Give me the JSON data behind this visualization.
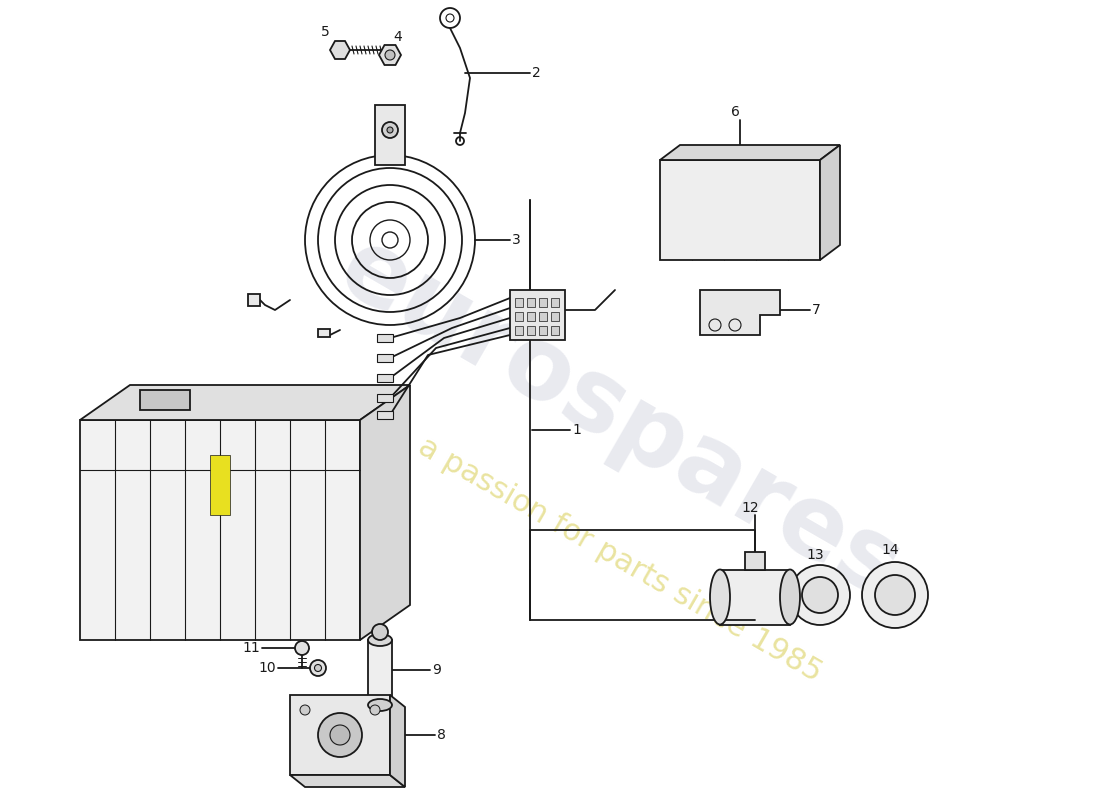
{
  "background_color": "#ffffff",
  "line_color": "#1a1a1a",
  "label_color": "#1a1a1a",
  "font_size": 10,
  "watermark1": "eurospares",
  "watermark2": "a passion for parts since 1985",
  "parts": [
    "1",
    "2",
    "3",
    "4",
    "5",
    "6",
    "7",
    "8",
    "9",
    "10",
    "11",
    "12",
    "13",
    "14"
  ]
}
